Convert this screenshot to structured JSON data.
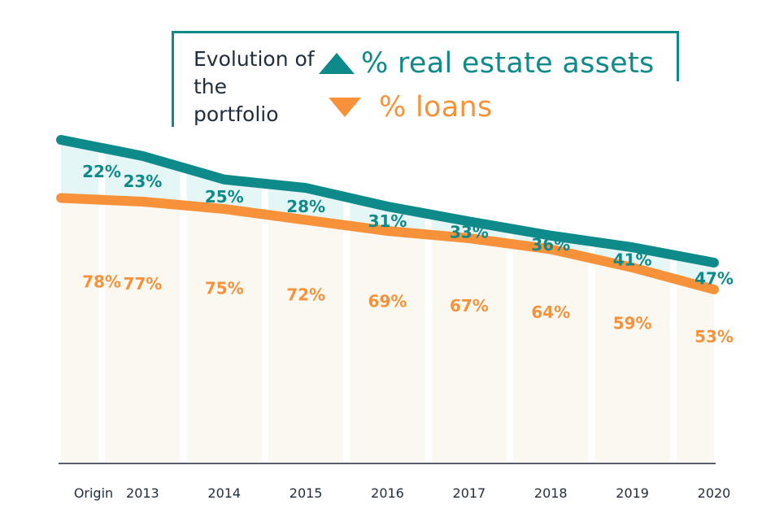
{
  "legend": {
    "title": "Evolution of the portfolio",
    "real_estate_label": "% real estate assets",
    "loans_label": "% loans"
  },
  "colors": {
    "real_estate": "#0f8a8a",
    "loans": "#f7923a",
    "real_estate_fill": "#e4f6f5",
    "loans_fill": "#fbf8f2",
    "axis": "#1f2d3d"
  },
  "chart_data": {
    "type": "area",
    "title": "Evolution of the portfolio",
    "categories": [
      "Origin",
      "2013",
      "2014",
      "2015",
      "2016",
      "2017",
      "2018",
      "2019",
      "2020"
    ],
    "series": [
      {
        "name": "% real estate assets",
        "values": [
          22,
          23,
          25,
          28,
          31,
          33,
          36,
          41,
          47
        ],
        "labels": [
          "22%",
          "23%",
          "25%",
          "28%",
          "31%",
          "33%",
          "36%",
          "41%",
          "47%"
        ]
      },
      {
        "name": "% loans",
        "values": [
          78,
          77,
          75,
          72,
          69,
          67,
          64,
          59,
          53
        ],
        "labels": [
          "78%",
          "77%",
          "75%",
          "72%",
          "69%",
          "67%",
          "64%",
          "59%",
          "53%"
        ]
      }
    ],
    "stacked": true,
    "grid": false,
    "legend_position": "top"
  }
}
